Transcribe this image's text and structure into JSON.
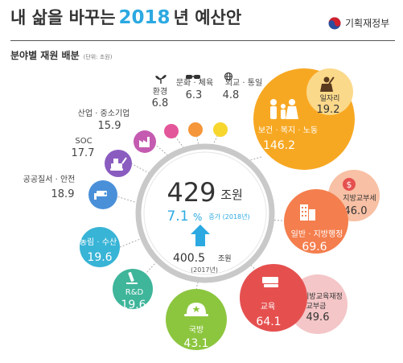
{
  "header": {
    "title_prefix": "내 삶을 바꾸는",
    "title_year": "2018",
    "title_suffix": "년 예산안",
    "ministry": "기획재정부",
    "subtitle": "분야별 재원 배분",
    "unit_note": "(단위: 조원)"
  },
  "center": {
    "total": "429",
    "total_unit": "조원",
    "growth": "7.1",
    "growth_unit": "%",
    "growth_note": "증가 (2018년)",
    "prev_total": "400.5",
    "prev_unit": "조원",
    "prev_year": "(2017년)"
  },
  "sectors": {
    "environment": {
      "label": "환경",
      "value": "6.8",
      "color": "#e3569a"
    },
    "culture": {
      "label": "문화 · 체육",
      "value": "6.3",
      "color": "#f5963a"
    },
    "diplomacy": {
      "label": "외교 · 통일",
      "value": "4.8",
      "color": "#f7d62e"
    },
    "industry": {
      "label": "산업 · 중소기업",
      "value": "15.9",
      "color": "#c45bb1"
    },
    "soc": {
      "label": "SOC",
      "value": "17.7",
      "color": "#8a5cc0"
    },
    "safety": {
      "label": "공공질서 · 안전",
      "value": "18.9",
      "color": "#4a90d9"
    },
    "agriculture": {
      "label": "농림 · 수산",
      "value": "19.6",
      "color": "#38b4d6"
    },
    "rnd": {
      "label": "R&D",
      "value": "19.6",
      "color": "#3fb59a"
    },
    "defense": {
      "label": "국방",
      "value": "43.1",
      "color": "#8cc63f"
    },
    "education": {
      "label": "교육",
      "value": "64.1",
      "color": "#e5504f"
    },
    "education_grant": {
      "label_1": "지방교육재정",
      "label_2": "교부금",
      "value": "49.6",
      "color": "#f4c6c7"
    },
    "general_admin": {
      "label": "일반 · 지방행정",
      "value": "69.6",
      "color": "#f47e4d"
    },
    "local_grant": {
      "label": "지방교부세",
      "value": "46.0",
      "color": "#f8c0a4"
    },
    "welfare": {
      "label": "보건 · 복지 · 노동",
      "value": "146.2",
      "color": "#f7a823"
    },
    "jobs": {
      "label": "일자리",
      "value": "19.2",
      "color": "#fbd98a"
    }
  },
  "icons": {
    "environment": "sprout-icon",
    "culture": "mask-icon",
    "diplomacy": "globe-icon",
    "industry": "factory-icon",
    "soc": "excavator-icon",
    "safety": "cctv-icon",
    "agriculture": "fish-icon",
    "rnd": "microscope-icon",
    "defense": "helmet-icon",
    "education": "book-icon",
    "general_admin": "building-icon",
    "local_grant": "money-icon",
    "welfare": "family-icon",
    "jobs": "worker-icon",
    "ministry": "taegeuk-icon",
    "growth": "up-arrow-icon"
  }
}
